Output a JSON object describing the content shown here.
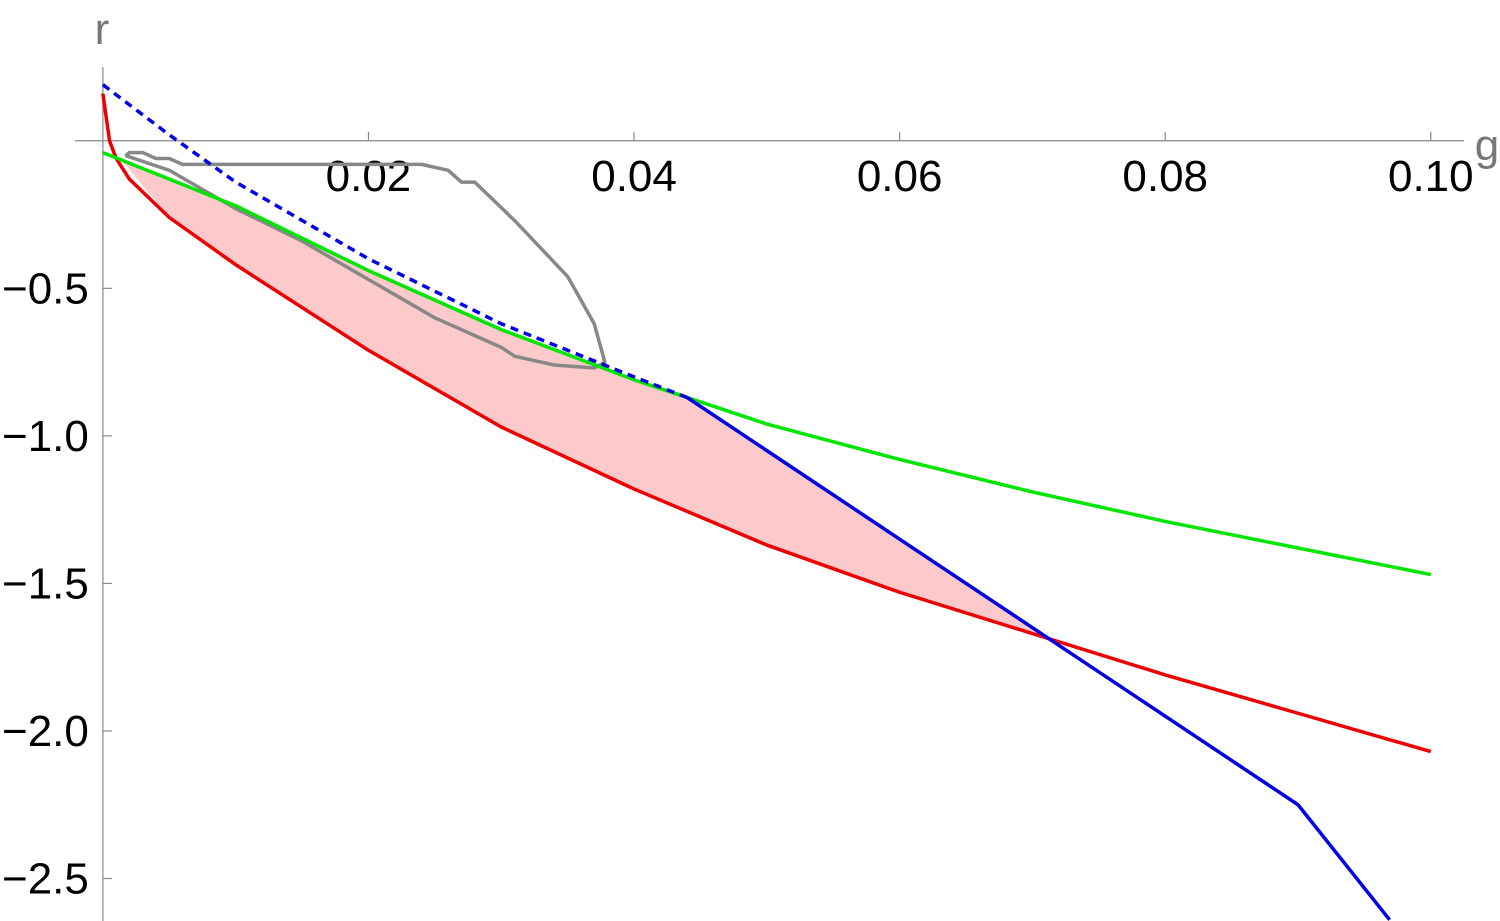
{
  "chart_data": {
    "type": "line",
    "x_label": "g",
    "y_label": "r",
    "xlim": [
      -0.0021,
      0.1025
    ],
    "ylim": [
      -2.644,
      0.25
    ],
    "xticks": [
      0.02,
      0.04,
      0.06,
      0.08,
      {
        "value": 0.1,
        "label": "0.10"
      }
    ],
    "yticks": [
      {
        "value": -0.5,
        "label": "−0.5"
      },
      {
        "value": -1.0,
        "label": "−1.0"
      },
      {
        "value": -1.5,
        "label": "−1.5"
      },
      {
        "value": -2.0,
        "label": "−2.0"
      },
      {
        "value": -2.5,
        "label": "−2.5"
      }
    ],
    "region": {
      "color": "#fccaca",
      "x": [
        0.0015,
        0.005,
        0.01,
        0.02,
        0.03,
        0.04,
        0.044,
        0.05,
        0.06,
        0.071
      ],
      "upper": [
        -0.07,
        -0.13,
        -0.22,
        -0.44,
        -0.64,
        -0.81,
        -0.87,
        -1.05,
        -1.35,
        -1.68
      ],
      "lower": [
        -0.07,
        -0.26,
        -0.42,
        -0.71,
        -0.97,
        -1.18,
        -1.25,
        -1.37,
        -1.53,
        -1.68
      ]
    },
    "series": [
      {
        "color": "#888888",
        "dash": false,
        "x": [
          0.0017,
          0.002,
          0.003,
          0.004,
          0.005,
          0.006,
          0.024,
          0.026,
          0.027,
          0.028,
          0.031,
          0.035,
          0.037,
          0.0378,
          0.037,
          0.034,
          0.031,
          0.03,
          0.025,
          0.02,
          0.015,
          0.01,
          0.005,
          0.0017
        ],
        "values": [
          -0.05,
          -0.04,
          -0.04,
          -0.06,
          -0.06,
          -0.08,
          -0.08,
          -0.1,
          -0.14,
          -0.14,
          -0.27,
          -0.46,
          -0.62,
          -0.75,
          -0.77,
          -0.76,
          -0.73,
          -0.7,
          -0.6,
          -0.47,
          -0.34,
          -0.23,
          -0.1,
          -0.05
        ]
      },
      {
        "color": "#ee0000",
        "dash": false,
        "x": [
          0,
          0.0005,
          0.001,
          0.002,
          0.005,
          0.01,
          0.02,
          0.03,
          0.04,
          0.05,
          0.06,
          0.07,
          0.08,
          0.09,
          0.1
        ],
        "values": [
          0.16,
          0.0,
          -0.06,
          -0.13,
          -0.26,
          -0.42,
          -0.71,
          -0.97,
          -1.18,
          -1.37,
          -1.53,
          -1.67,
          -1.81,
          -1.94,
          -2.07
        ]
      },
      {
        "color": "#00e600",
        "dash": false,
        "x": [
          0,
          0.005,
          0.01,
          0.02,
          0.03,
          0.04,
          0.05,
          0.06,
          0.07,
          0.08,
          0.09,
          0.1
        ],
        "values": [
          -0.04,
          -0.13,
          -0.22,
          -0.44,
          -0.64,
          -0.81,
          -0.96,
          -1.08,
          -1.19,
          -1.29,
          -1.38,
          -1.47
        ]
      },
      {
        "color": "#0000e6",
        "dash": true,
        "x": [
          0,
          0.005,
          0.01,
          0.02,
          0.03,
          0.04,
          0.044
        ],
        "values": [
          0.19,
          0.02,
          -0.14,
          -0.4,
          -0.62,
          -0.8,
          -0.87
        ]
      },
      {
        "color": "#0000e6",
        "dash": false,
        "x": [
          0.044,
          0.05,
          0.06,
          0.071,
          0.08,
          0.09,
          0.0969
        ],
        "values": [
          -0.87,
          -1.05,
          -1.35,
          -1.68,
          -1.95,
          -2.25,
          -2.64
        ]
      }
    ]
  }
}
